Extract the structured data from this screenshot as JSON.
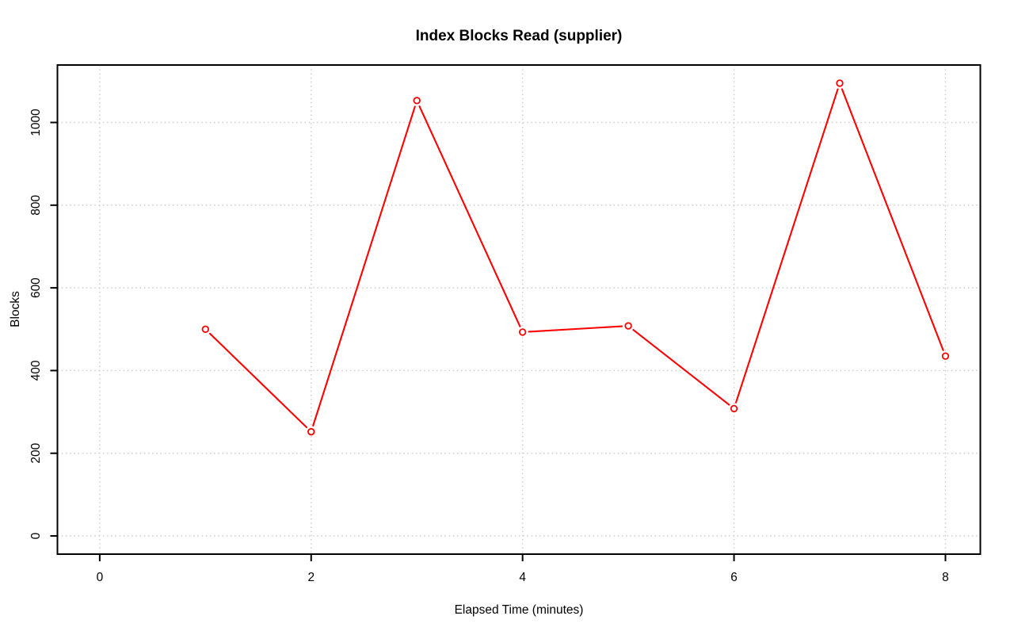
{
  "chart_data": {
    "type": "line",
    "title": "Index Blocks Read (supplier)",
    "xlabel": "Elapsed Time (minutes)",
    "ylabel": "Blocks",
    "x": [
      1,
      2,
      3,
      4,
      5,
      6,
      7,
      8
    ],
    "values": [
      500,
      252,
      1053,
      493,
      508,
      308,
      1095,
      435
    ],
    "series_name": "Index Blocks Read (supplier)",
    "xticks": [
      0,
      2,
      4,
      6,
      8
    ],
    "yticks": [
      0,
      200,
      400,
      600,
      800,
      1000
    ],
    "xlim": [
      -0.4,
      8.33
    ],
    "ylim": [
      -44,
      1139
    ],
    "grid": true,
    "grid_style": "dotted",
    "legend_position": "none",
    "marker": "open-circle",
    "line_style": "solid-with-gaps-at-points",
    "colors": {
      "line": "#FF0000",
      "marker_stroke": "#FF0000",
      "marker_fill": "#FFFFFF",
      "grid": "#CFCFCF",
      "axis": "#000000",
      "background": "#FFFFFF"
    }
  }
}
